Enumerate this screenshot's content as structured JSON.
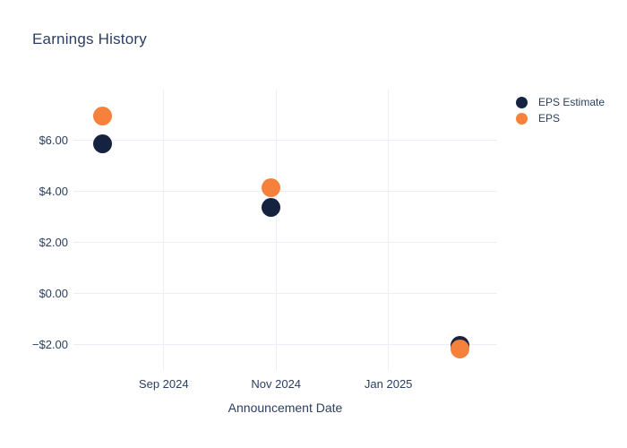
{
  "chart": {
    "title": "Earnings History"
  },
  "colors": {
    "eps_estimate": "#162340",
    "eps": "#f5813c",
    "gridline": "#ebeef7",
    "text": "#2a3f5f",
    "background": "#ffffff"
  },
  "chart_data": {
    "type": "scatter",
    "title": "Earnings History",
    "xlabel": "Announcement Date",
    "ylabel": "",
    "grid": true,
    "legend_position": "top-right",
    "x_type": "date",
    "xlim": [
      "2024-07-14",
      "2025-03-01"
    ],
    "ylim": [
      -3,
      8
    ],
    "x_ticks": [
      {
        "value": "2024-09-01",
        "label": "Sep 2024"
      },
      {
        "value": "2024-11-01",
        "label": "Nov 2024"
      },
      {
        "value": "2025-01-01",
        "label": "Jan 2025"
      }
    ],
    "y_ticks": [
      {
        "value": 6,
        "label": "$6.00"
      },
      {
        "value": 4,
        "label": "$4.00"
      },
      {
        "value": 2,
        "label": "$2.00"
      },
      {
        "value": 0,
        "label": "$0.00"
      },
      {
        "value": -2,
        "label": "−$2.00"
      }
    ],
    "series": [
      {
        "name": "EPS Estimate",
        "color": "#162340",
        "marker_size": 21,
        "x": [
          "2024-07-30",
          "2024-10-29",
          "2025-02-09"
        ],
        "y": [
          5.89,
          3.38,
          -2.05
        ]
      },
      {
        "name": "EPS",
        "color": "#f5813c",
        "marker_size": 21,
        "x": [
          "2024-07-30",
          "2024-10-29",
          "2025-02-09"
        ],
        "y": [
          6.97,
          4.15,
          -2.16
        ]
      }
    ]
  }
}
